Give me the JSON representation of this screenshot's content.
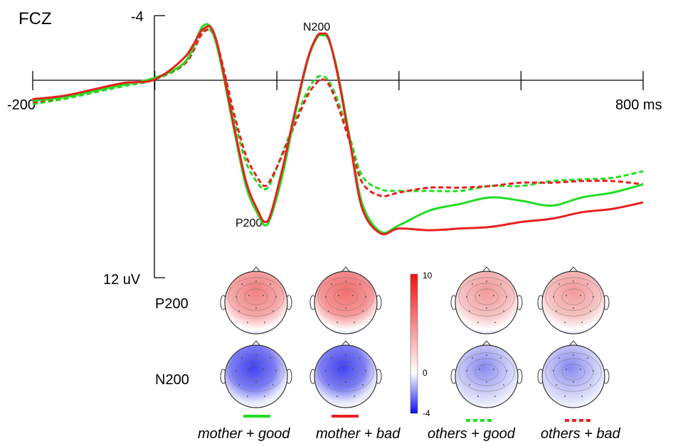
{
  "chart_data": {
    "type": "line",
    "title": "FCZ",
    "xlabel": "",
    "ylabel": "",
    "x_tick_labels": [
      "-200",
      "800 ms"
    ],
    "y_tick_labels": [
      "-4",
      "12 uV"
    ],
    "xlim": [
      -200,
      800
    ],
    "ylim_note": "negative up",
    "ylim": [
      -4,
      12
    ],
    "peak_labels": [
      "P200",
      "N200"
    ],
    "peaks": [
      {
        "label": "P200",
        "x": 180,
        "y": 8.7
      },
      {
        "label": "N200",
        "x": 275,
        "y": -2.6
      }
    ],
    "x": [
      -200,
      -150,
      -100,
      -50,
      0,
      50,
      80,
      100,
      130,
      150,
      170,
      180,
      190,
      210,
      230,
      250,
      265,
      275,
      285,
      300,
      320,
      340,
      370,
      400,
      450,
      500,
      550,
      600,
      650,
      700,
      750,
      800
    ],
    "series": [
      {
        "name": "mother + good",
        "color": "#22dd22",
        "dash": false,
        "values": [
          1.2,
          1.0,
          0.6,
          0.2,
          -0.2,
          -1.2,
          -3.4,
          -2.4,
          3.0,
          6.5,
          8.2,
          8.8,
          8.3,
          5.6,
          2.0,
          -1.2,
          -2.6,
          -2.8,
          -2.5,
          -0.5,
          3.6,
          7.5,
          9.2,
          8.8,
          7.9,
          7.5,
          7.1,
          7.3,
          7.6,
          7.1,
          6.8,
          6.3
        ]
      },
      {
        "name": "mother + bad",
        "color": "#e82020",
        "dash": false,
        "values": [
          1.1,
          0.9,
          0.5,
          0.1,
          -0.1,
          -1.5,
          -3.2,
          -2.6,
          2.8,
          6.2,
          8.0,
          8.6,
          8.1,
          5.2,
          1.8,
          -1.3,
          -2.7,
          -2.9,
          -2.6,
          -0.3,
          3.8,
          7.8,
          9.3,
          9.0,
          9.1,
          9.0,
          8.9,
          8.6,
          8.4,
          8.0,
          7.8,
          7.4
        ]
      },
      {
        "name": "others + good",
        "color": "#22dd22",
        "dash": true,
        "values": [
          1.4,
          1.1,
          0.7,
          0.3,
          -0.1,
          -1.1,
          -3.1,
          -2.4,
          2.3,
          5.0,
          6.3,
          6.6,
          6.2,
          4.3,
          2.4,
          0.6,
          -0.2,
          -0.3,
          0.0,
          1.2,
          3.5,
          5.8,
          6.6,
          6.7,
          6.7,
          6.7,
          6.4,
          6.4,
          6.1,
          6.0,
          5.9,
          5.5
        ]
      },
      {
        "name": "others + bad",
        "color": "#e82020",
        "dash": true,
        "values": [
          1.3,
          1.0,
          0.6,
          0.2,
          -0.2,
          -1.1,
          -3.0,
          -2.5,
          2.0,
          4.6,
          6.0,
          6.4,
          6.0,
          4.4,
          2.6,
          0.9,
          0.1,
          -0.1,
          0.2,
          1.5,
          3.8,
          6.2,
          7.0,
          6.8,
          6.5,
          6.5,
          6.4,
          6.2,
          6.2,
          6.1,
          6.1,
          6.3
        ]
      }
    ]
  },
  "topomaps": {
    "row_labels": [
      "P200",
      "N200"
    ],
    "conditions": [
      "mother + good",
      "mother + bad",
      "others + good",
      "others + bad"
    ],
    "colorbar": {
      "max_label": "10",
      "mid_label": "0",
      "min_label": "-4",
      "max": 10,
      "min": -4,
      "colors": {
        "high": "#ee1111",
        "mid": "#ffffff",
        "low": "#1010ee"
      }
    },
    "p200_intensity": [
      0.75,
      0.85,
      0.6,
      0.6
    ],
    "n200_intensity": [
      0.95,
      0.95,
      0.6,
      0.6
    ]
  },
  "legend": {
    "items": [
      {
        "label": "mother + good",
        "color": "#22dd22",
        "dash": false
      },
      {
        "label": "mother + bad",
        "color": "#e82020",
        "dash": false
      },
      {
        "label": "others + good",
        "color": "#22dd22",
        "dash": true
      },
      {
        "label": "others + bad",
        "color": "#e82020",
        "dash": true
      }
    ]
  }
}
